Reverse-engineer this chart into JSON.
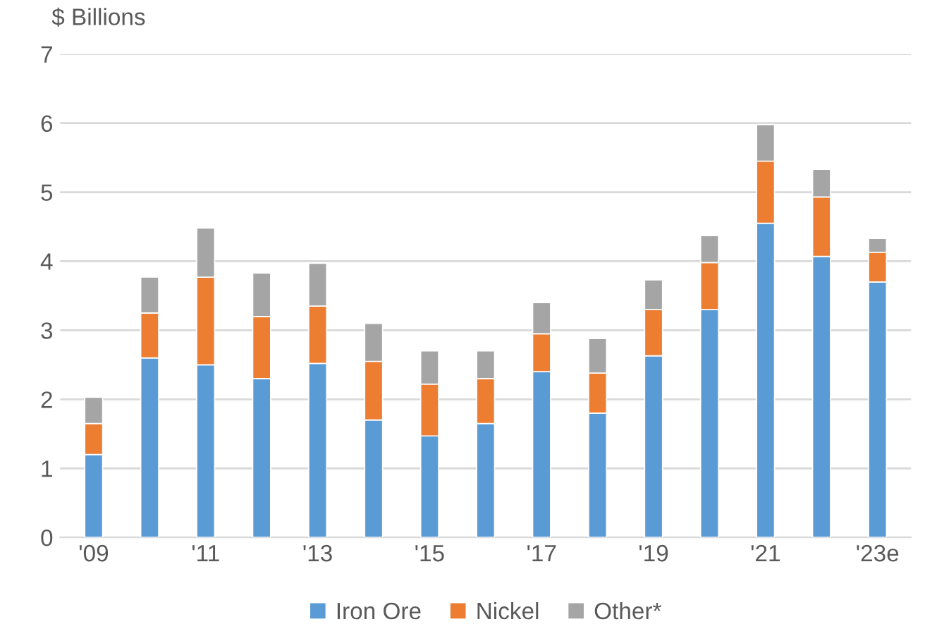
{
  "chart_data": {
    "type": "bar",
    "stacked": true,
    "ylabel": "$ Billions",
    "categories": [
      "'09",
      null,
      "'11",
      null,
      "'13",
      null,
      "'15",
      null,
      "'17",
      null,
      "'19",
      null,
      "'21",
      null,
      "'23e"
    ],
    "series": [
      {
        "name": "Iron Ore",
        "color": "#5b9bd5",
        "values": [
          1.2,
          2.6,
          2.5,
          2.3,
          2.52,
          1.7,
          1.47,
          1.65,
          2.4,
          1.8,
          2.63,
          3.3,
          4.55,
          4.07,
          3.7
        ]
      },
      {
        "name": "Nickel",
        "color": "#ed7d31",
        "values": [
          0.45,
          0.65,
          1.27,
          0.9,
          0.83,
          0.85,
          0.75,
          0.65,
          0.55,
          0.58,
          0.67,
          0.68,
          0.9,
          0.86,
          0.43
        ]
      },
      {
        "name": "Other*",
        "color": "#a5a5a5",
        "values": [
          0.38,
          0.52,
          0.71,
          0.63,
          0.62,
          0.55,
          0.48,
          0.4,
          0.45,
          0.5,
          0.43,
          0.39,
          0.53,
          0.4,
          0.2
        ]
      }
    ],
    "ylim": [
      0,
      7
    ],
    "yticks": [
      0,
      1,
      2,
      3,
      4,
      5,
      6,
      7
    ],
    "grid": "y",
    "legend": "bottom"
  }
}
